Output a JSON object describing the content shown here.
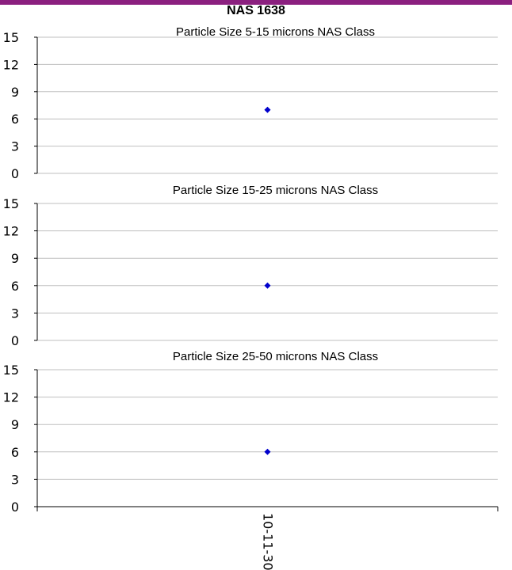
{
  "header": {
    "title": "NAS 1638",
    "accent_color": "#8b1f7f"
  },
  "chart_data": [
    {
      "type": "scatter",
      "title": "Particle Size 5-15 microns NAS Class",
      "categories": [
        "10-11-30"
      ],
      "values": [
        7
      ],
      "ylim": [
        0,
        15
      ],
      "yticks": [
        "0",
        "3",
        "6",
        "9",
        "12",
        "15"
      ],
      "grid": true,
      "marker_color": "#0000cc"
    },
    {
      "type": "scatter",
      "title": "Particle Size 15-25 microns NAS Class",
      "categories": [
        "10-11-30"
      ],
      "values": [
        6
      ],
      "ylim": [
        0,
        15
      ],
      "yticks": [
        "0",
        "3",
        "6",
        "9",
        "12",
        "15"
      ],
      "grid": true,
      "marker_color": "#0000cc"
    },
    {
      "type": "scatter",
      "title": "Particle Size 25-50 microns NAS Class",
      "categories": [
        "10-11-30"
      ],
      "values": [
        6
      ],
      "ylim": [
        0,
        15
      ],
      "yticks": [
        "0",
        "3",
        "6",
        "9",
        "12",
        "15"
      ],
      "grid": true,
      "marker_color": "#0000cc"
    }
  ]
}
